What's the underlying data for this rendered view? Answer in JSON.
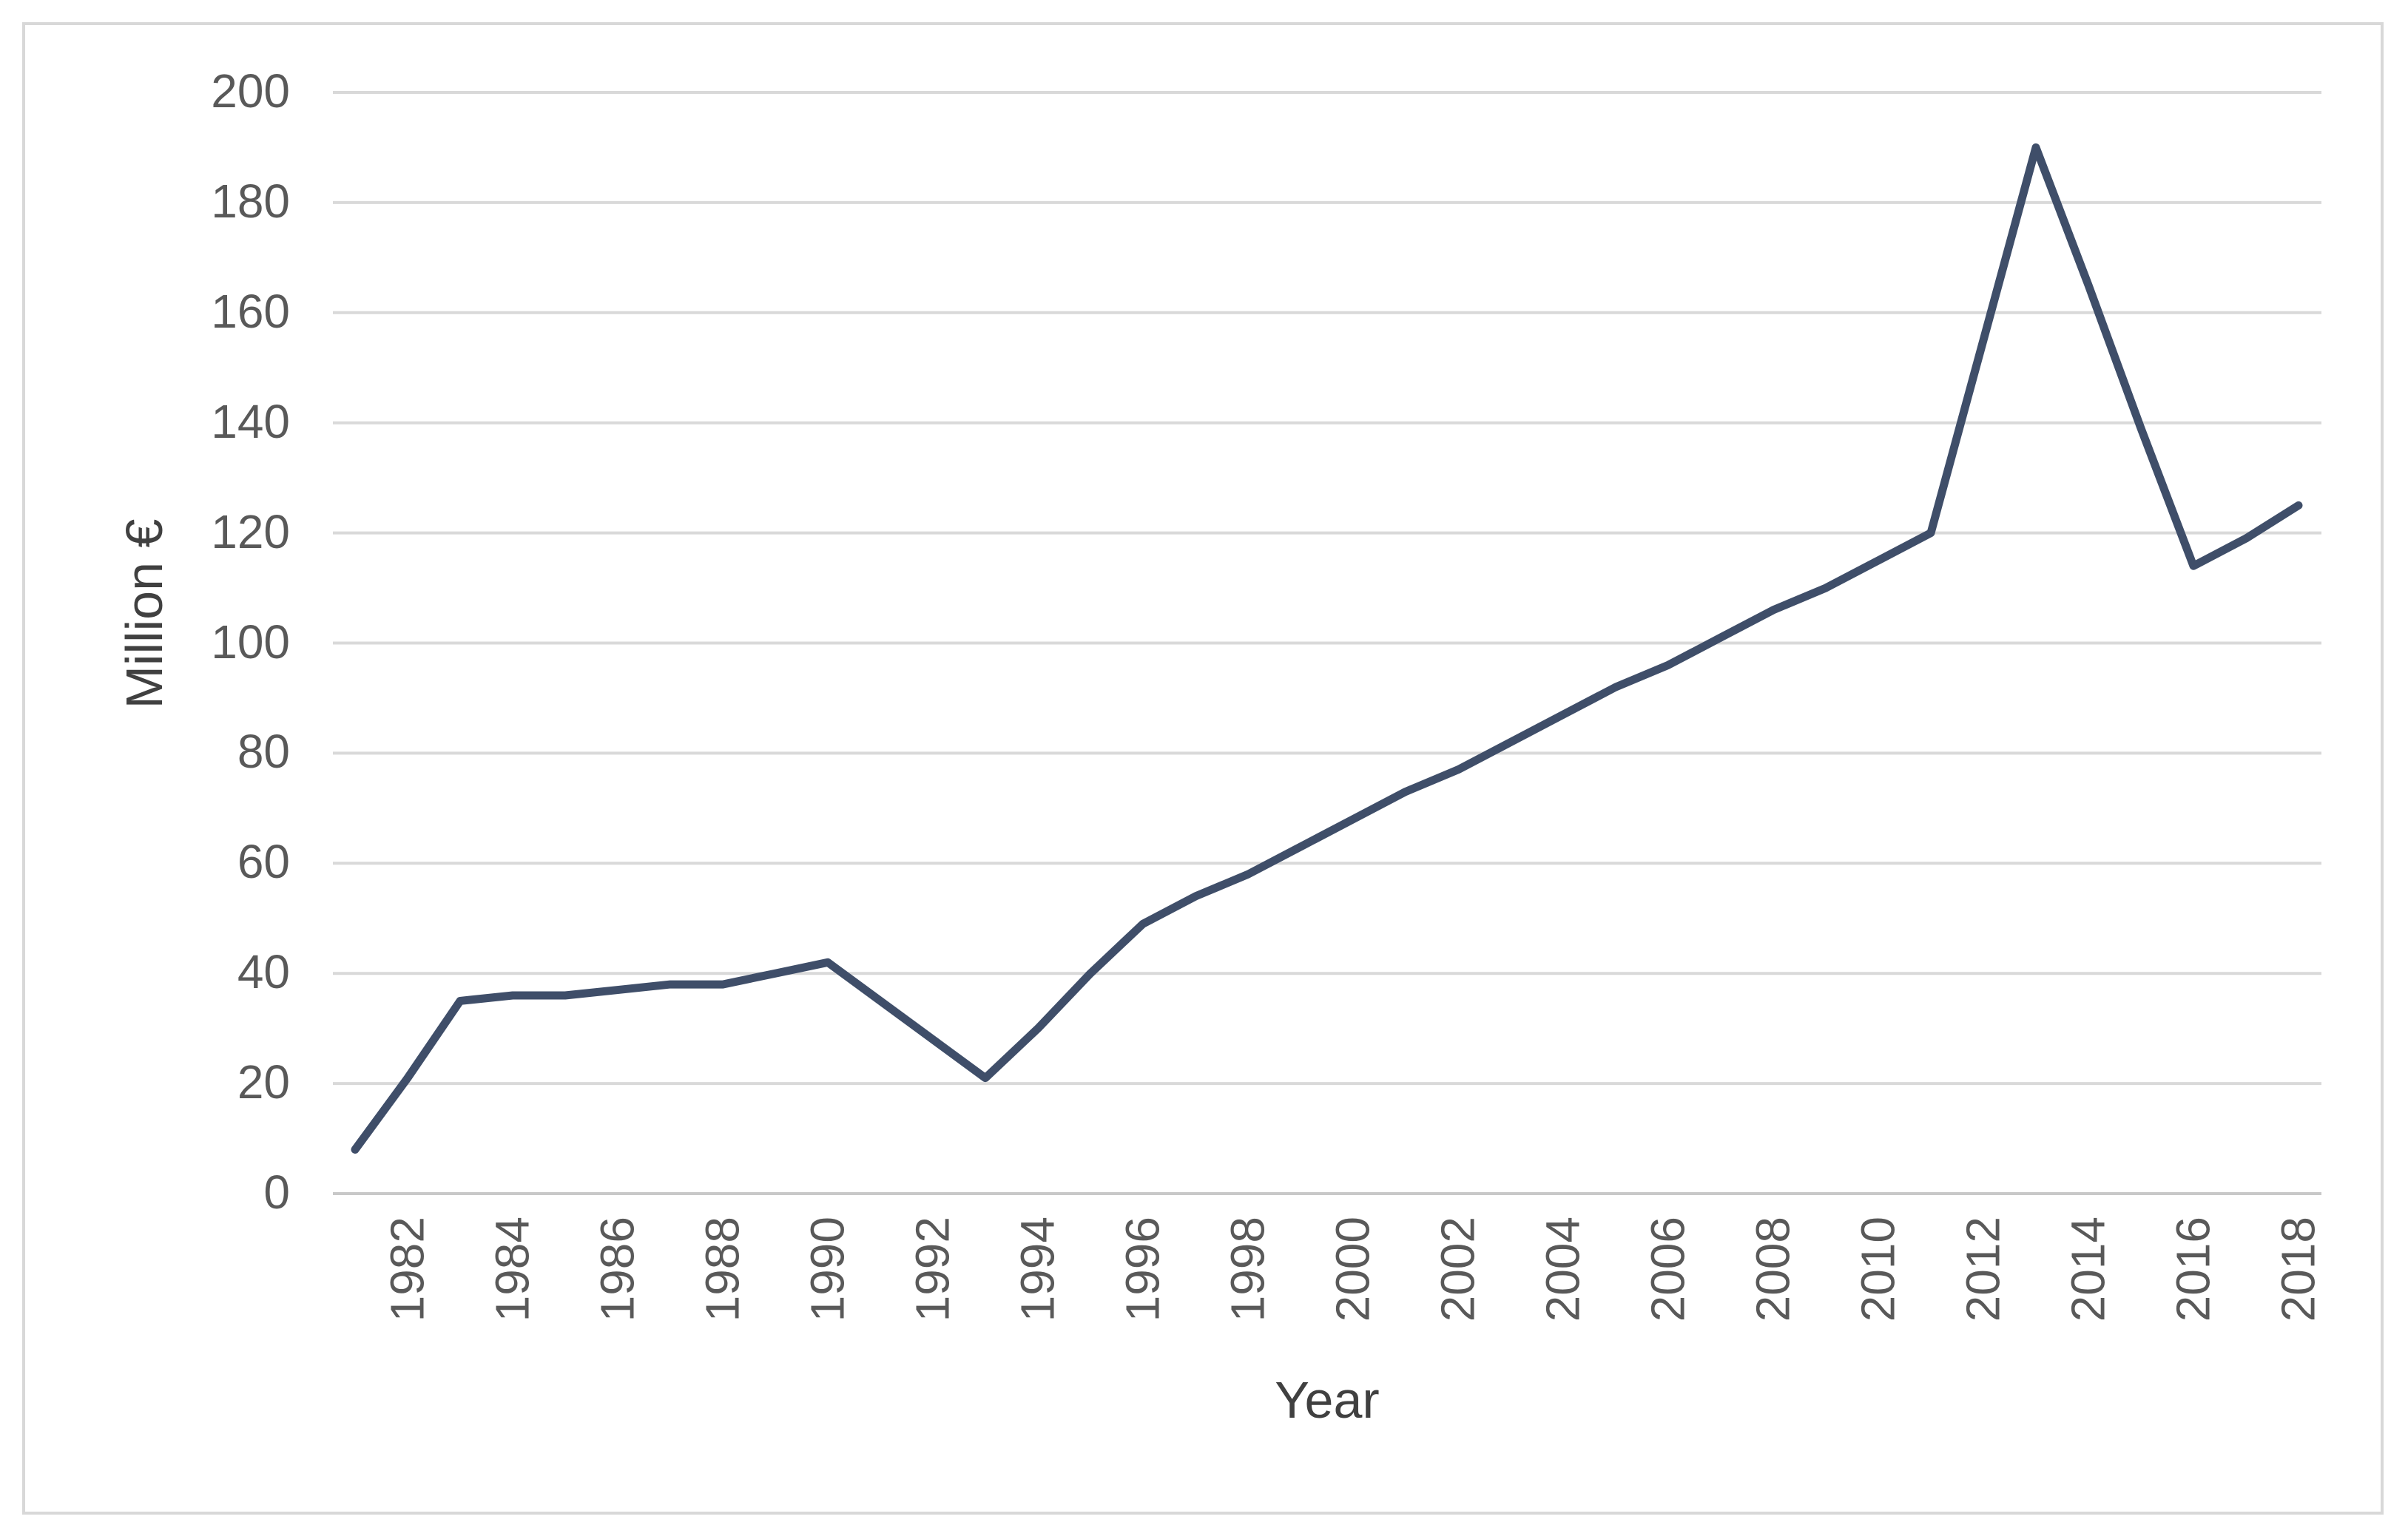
{
  "chart_data": {
    "type": "line",
    "title": "",
    "xlabel": "Year",
    "ylabel": "Million €",
    "x": [
      1981,
      1982,
      1983,
      1984,
      1985,
      1986,
      1987,
      1988,
      1989,
      1990,
      1991,
      1992,
      1993,
      1994,
      1995,
      1996,
      1997,
      1998,
      1999,
      2000,
      2001,
      2002,
      2003,
      2004,
      2005,
      2006,
      2007,
      2008,
      2009,
      2010,
      2011,
      2012,
      2013,
      2014,
      2015,
      2016,
      2017,
      2018
    ],
    "series": [
      {
        "name": "Million €",
        "values": [
          8,
          21,
          35,
          36,
          36,
          37,
          38,
          38,
          40,
          42,
          35,
          28,
          21,
          30,
          40,
          49,
          54,
          58,
          63,
          68,
          73,
          77,
          82,
          87,
          92,
          96,
          101,
          106,
          110,
          115,
          120,
          155,
          190,
          165,
          139,
          114,
          119,
          125
        ]
      }
    ],
    "x_tick_labels": [
      "1982",
      "1984",
      "1986",
      "1988",
      "1990",
      "1992",
      "1994",
      "1996",
      "1998",
      "2000",
      "2002",
      "2004",
      "2006",
      "2008",
      "2010",
      "2012",
      "2014",
      "2016",
      "2018"
    ],
    "x_tick_step_years": 2,
    "y_ticks": [
      0,
      20,
      40,
      60,
      80,
      100,
      120,
      140,
      160,
      180,
      200
    ],
    "y_tick_labels": [
      "0",
      "20",
      "40",
      "60",
      "80",
      "100",
      "120",
      "140",
      "160",
      "180",
      "200"
    ],
    "ylim": [
      0,
      200
    ],
    "grid": "horizontal-only",
    "legend": "none",
    "colors": {
      "series_line": "#3F4E69",
      "gridline": "#D9D9D9",
      "axis_line": "#C8C8C8",
      "tick_text": "#595959",
      "axis_title_text": "#404040",
      "frame_border": "#D8D8D8",
      "background": "#FFFFFF"
    }
  }
}
